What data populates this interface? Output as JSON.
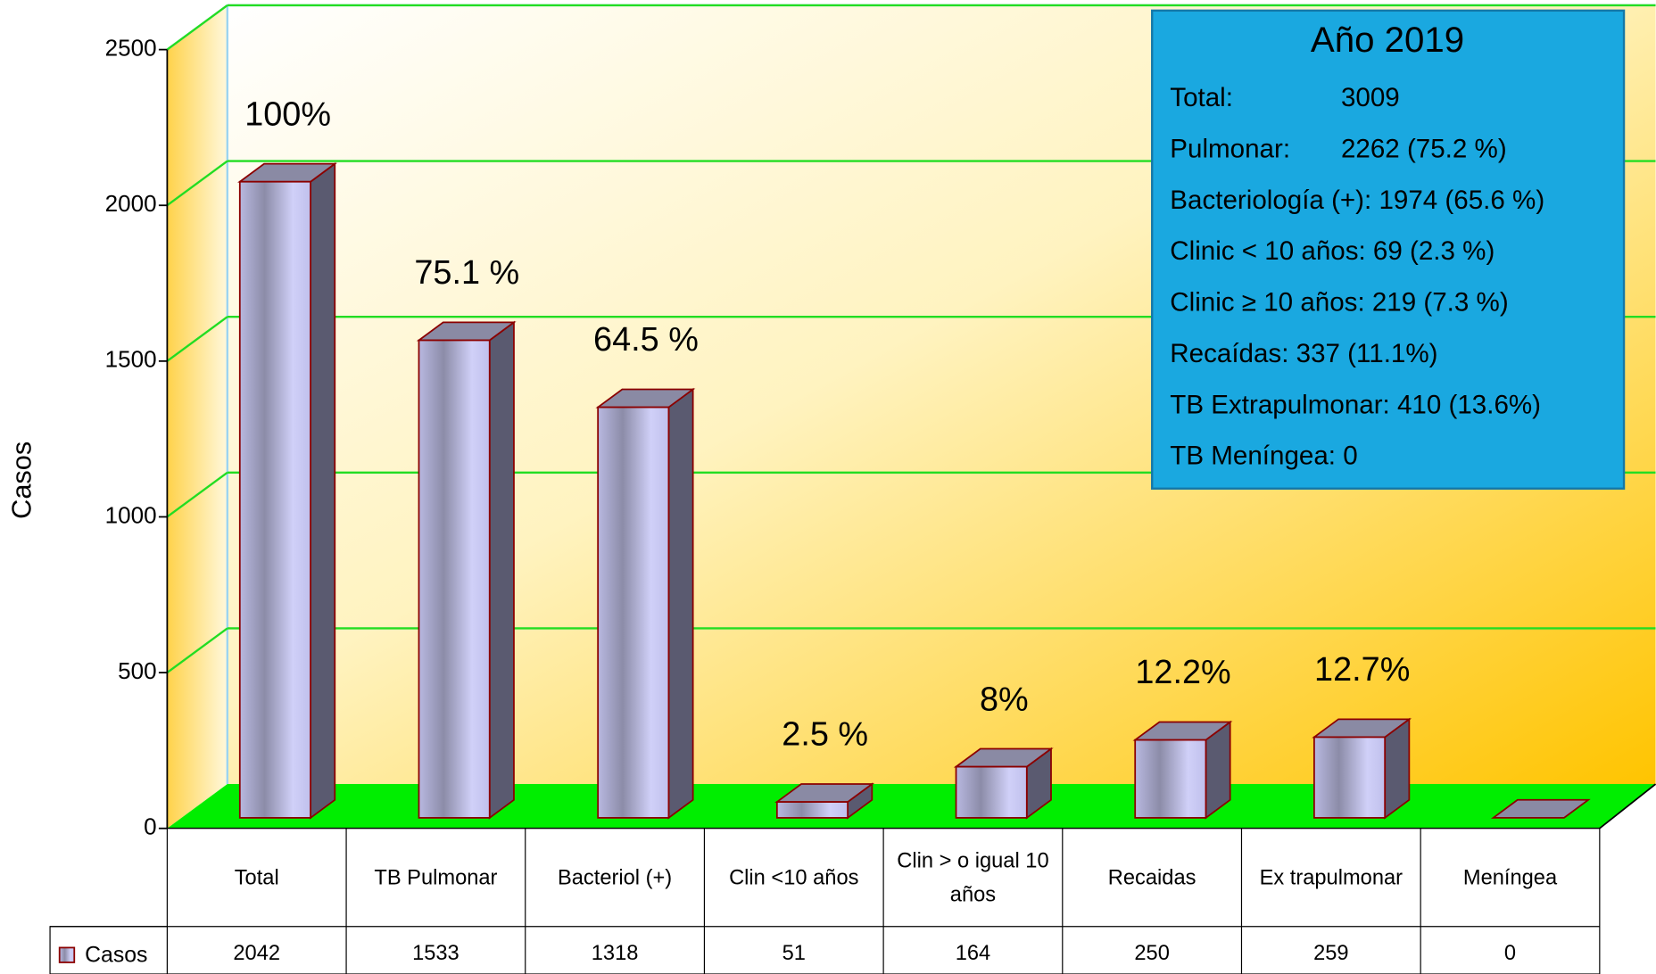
{
  "chart_data": {
    "type": "bar3d",
    "y_axis_label": "Casos",
    "categories": [
      "Total",
      "TB Pulmonar",
      "Bacteriol (+)",
      "Clin <10 años",
      "Clin > o igual 10 años",
      "Recaidas",
      "Ex trapulmonar",
      "Meníngea"
    ],
    "series": [
      {
        "name": "Casos",
        "color": "#c8c8f0",
        "values": [
          2042,
          1533,
          1318,
          51,
          164,
          250,
          259,
          0
        ]
      }
    ],
    "annotations": [
      "100%",
      "75.1 %",
      "64.5 %",
      "2.5 %",
      "8%",
      "12.2%",
      "12.7%",
      null
    ],
    "ylim": [
      0,
      2500
    ],
    "yticks": [
      0,
      500,
      1000,
      1500,
      2000,
      2500
    ],
    "grid": true,
    "info_box": {
      "title": "Año 2019",
      "lines": [
        [
          "Total:",
          "3009"
        ],
        [
          "Pulmonar:",
          "2262 (75.2 %)"
        ],
        [
          "Bacteriología (+): 1974 (65.6 %)"
        ],
        [
          "Clinic < 10 años:  69 (2.3 %)"
        ],
        [
          "Clinic ≥ 10 años: 219 (7.3 %)"
        ],
        [
          "Recaídas: 337 (11.1%)"
        ],
        [
          "TB Extrapulmonar: 410 (13.6%)"
        ],
        [
          "TB Meníngea: 0"
        ]
      ]
    }
  }
}
